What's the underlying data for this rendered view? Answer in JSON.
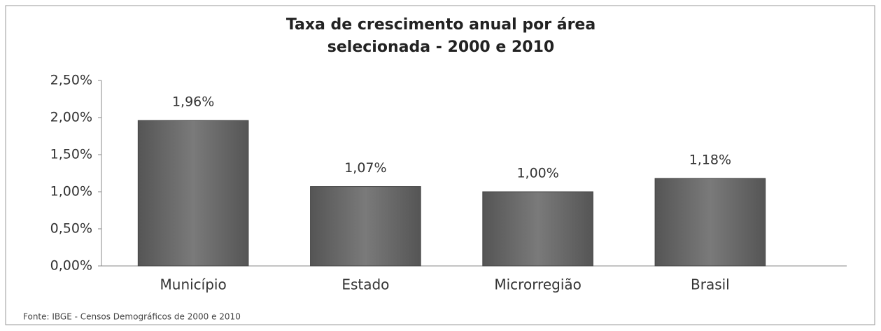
{
  "chart_data": {
    "type": "bar",
    "title": "Taxa de crescimento anual por área selecionada - 2000 e 2010",
    "categories": [
      "Município",
      "Estado",
      "Microrregião",
      "Brasil"
    ],
    "values": [
      1.96,
      1.07,
      1.0,
      1.18
    ],
    "value_labels": [
      "1,96%",
      "1,07%",
      "1,00%",
      "1,18%"
    ],
    "color": "#6e6e6e",
    "ylim": [
      0,
      2.5
    ],
    "yticks": [
      {
        "value": 0,
        "label": "0,00%"
      },
      {
        "value": 0.5,
        "label": "0,50%"
      },
      {
        "value": 1,
        "label": "1,00%"
      },
      {
        "value": 1.5,
        "label": "1,50%"
      },
      {
        "value": 2,
        "label": "2,00%"
      },
      {
        "value": 2.5,
        "label": "2,50%"
      }
    ],
    "grid": false,
    "source": "Fonte: IBGE - Censos Demográficos de 2000 e 2010"
  }
}
